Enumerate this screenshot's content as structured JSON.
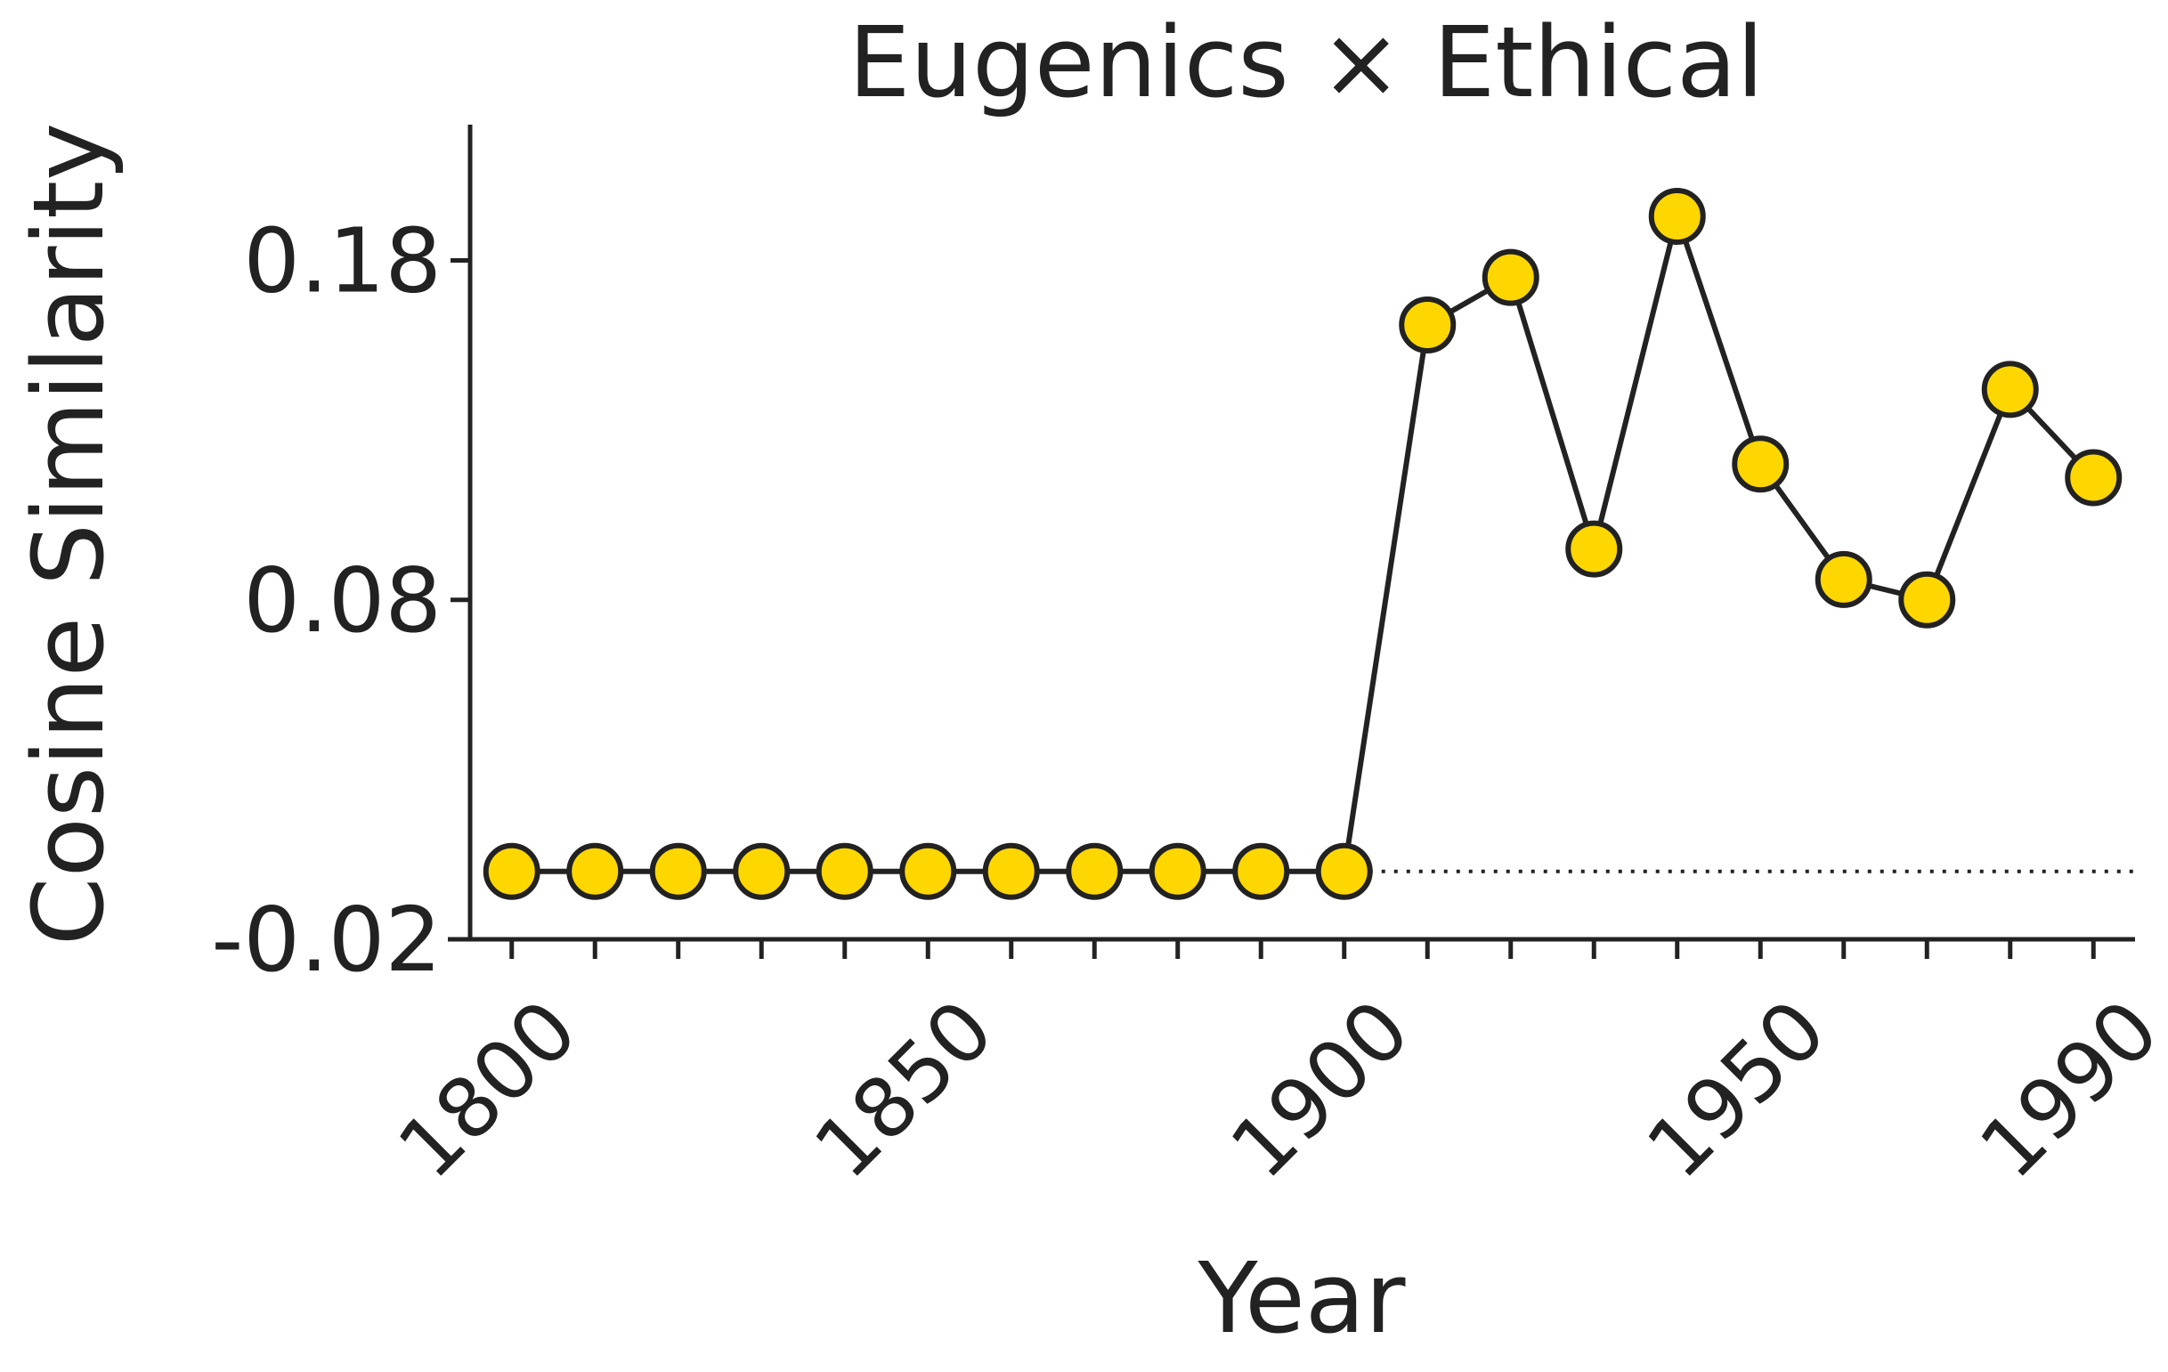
{
  "chart_data": {
    "type": "line",
    "title": "Eugenics × Ethical",
    "xlabel": "Year",
    "ylabel": "Cosine Similarity",
    "x": [
      1800,
      1810,
      1820,
      1830,
      1840,
      1850,
      1860,
      1870,
      1880,
      1890,
      1900,
      1910,
      1920,
      1930,
      1940,
      1950,
      1960,
      1970,
      1980,
      1990
    ],
    "series": [
      {
        "values": [
          0.0,
          0.0,
          0.0,
          0.0,
          0.0,
          0.0,
          0.0,
          0.0,
          0.0,
          0.0,
          0.0,
          0.161,
          0.175,
          0.095,
          0.193,
          0.12,
          0.086,
          0.08,
          0.142,
          0.116
        ]
      }
    ],
    "xticks": [
      1800,
      1810,
      1820,
      1830,
      1840,
      1850,
      1860,
      1870,
      1880,
      1890,
      1900,
      1910,
      1920,
      1930,
      1940,
      1950,
      1960,
      1970,
      1980,
      1990
    ],
    "xtick_labels": [
      "1800",
      "1850",
      "1900",
      "1950",
      "1990"
    ],
    "xtick_labels_at": [
      1800,
      1850,
      1900,
      1950,
      1990
    ],
    "yticks": [
      -0.02,
      0.08,
      0.18
    ],
    "ytick_labels": [
      "-0.02",
      "0.08",
      "0.18"
    ],
    "xlim": [
      1795,
      1995
    ],
    "ylim": [
      -0.02,
      0.22
    ],
    "reference_line": {
      "y": 0.0,
      "from_x": 1900,
      "to_x": 1995,
      "style": "dotted"
    },
    "grid": false,
    "legend": "none",
    "colors": {
      "marker_fill": "#FFD700",
      "line": "#222222",
      "axis": "#222222"
    }
  }
}
